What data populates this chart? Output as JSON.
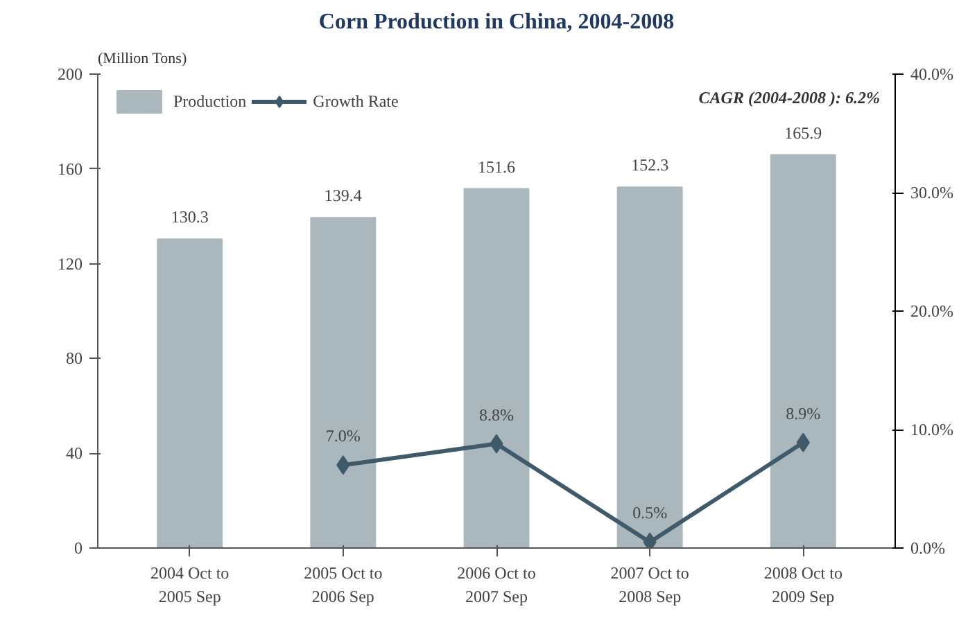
{
  "chart_data": {
    "type": "bar",
    "title": "Corn Production in China, 2004-2008",
    "ylabel": "(Million Tons)",
    "annotations": [
      "CAGR (2004-2008 ): 6.2%"
    ],
    "categories": [
      "2004 Oct to\n2005 Sep",
      "2005 Oct to\n2006 Sep",
      "2006 Oct to\n2007 Sep",
      "2007 Oct to\n2008 Sep",
      "2008 Oct to\n2009 Sep"
    ],
    "series": [
      {
        "name": "Production",
        "color": "#aab8bd",
        "values": [
          130.3,
          139.4,
          151.6,
          152.3,
          165.9
        ],
        "data_labels": true
      },
      {
        "name": "Growth Rate",
        "type": "line",
        "axis": "y2",
        "color": "#3e5a6b",
        "marker": "diamond",
        "line_style": "solid",
        "values": [
          null,
          7.0,
          8.8,
          0.5,
          8.9
        ],
        "value_labels": [
          null,
          "7.0%",
          "8.8%",
          "0.5%",
          "8.9%"
        ]
      }
    ],
    "ylim": [
      0,
      200
    ],
    "yticks": [
      0,
      40,
      80,
      120,
      160,
      200
    ],
    "y2lim": [
      0,
      40
    ],
    "y2ticks": [
      {
        "value": 0,
        "label": "0.0%"
      },
      {
        "value": 10,
        "label": "10.0%"
      },
      {
        "value": 20,
        "label": "20.0%"
      },
      {
        "value": 30,
        "label": "30.0%"
      },
      {
        "value": 40,
        "label": "40.0%"
      }
    ],
    "grid": false,
    "legend": "top left"
  }
}
